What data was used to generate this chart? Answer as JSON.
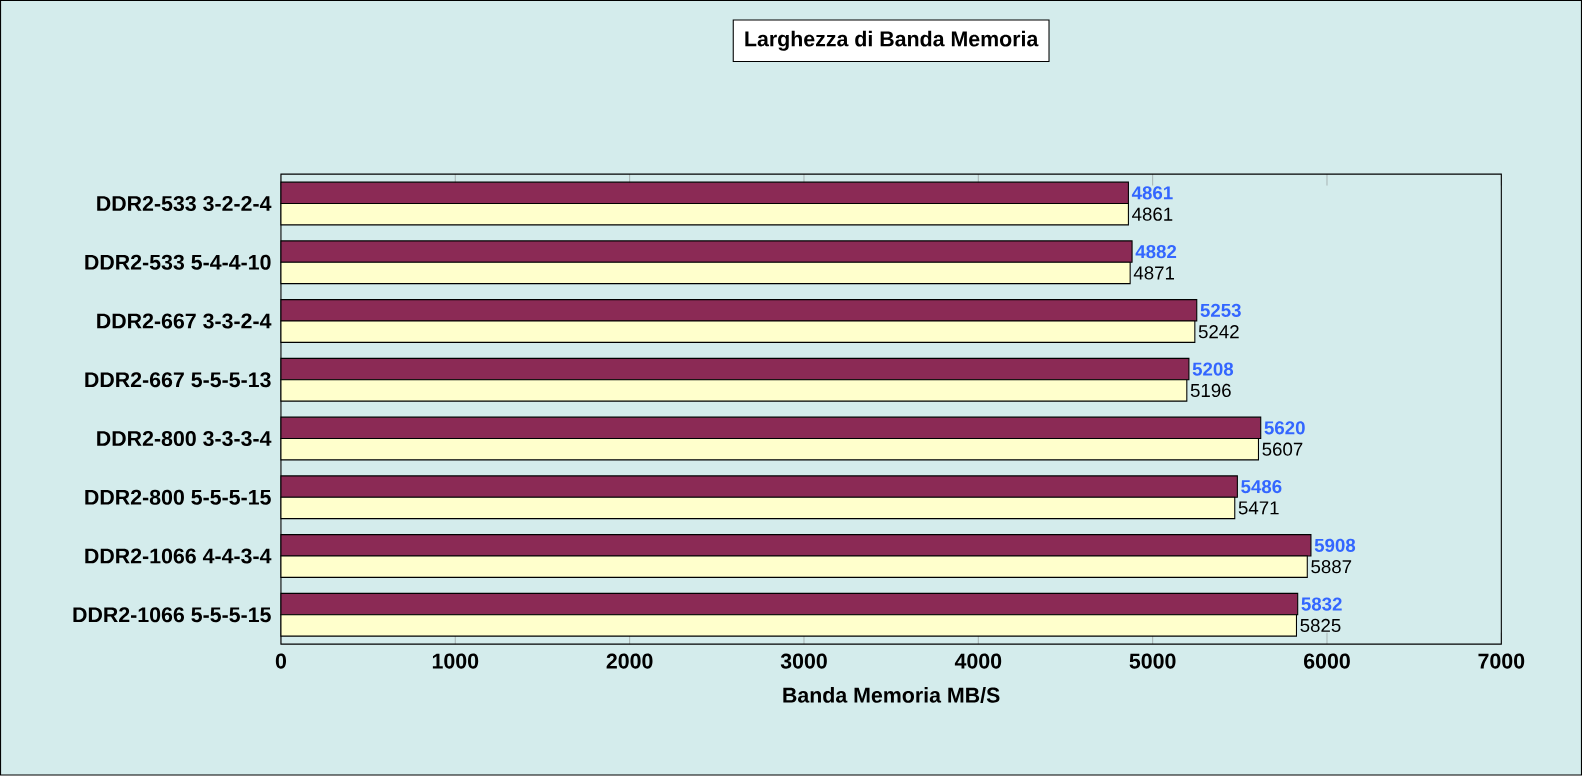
{
  "chart_data": {
    "type": "bar",
    "orientation": "horizontal",
    "title": "Larghezza di Banda Memoria",
    "xlabel": "Banda Memoria MB/S",
    "categories": [
      "DDR2-533 3-2-2-4",
      "DDR2-533 5-4-4-10",
      "DDR2-667 3-3-2-4",
      "DDR2-667 5-5-5-13",
      "DDR2-800 3-3-3-4",
      "DDR2-800 5-5-5-15",
      "DDR2-1066 4-4-3-4",
      "DDR2-1066 5-5-5-15"
    ],
    "series": [
      {
        "color": "#8b2a55",
        "values": [
          4861,
          4882,
          5253,
          5208,
          5620,
          5486,
          5908,
          5832
        ]
      },
      {
        "color": "#ffffcc",
        "values": [
          4861,
          4871,
          5242,
          5196,
          5607,
          5471,
          5887,
          5825
        ]
      }
    ],
    "xlim": [
      0,
      7000
    ],
    "xticks": [
      0,
      1000,
      2000,
      3000,
      4000,
      5000,
      6000,
      7000
    ],
    "data_labels": true
  }
}
